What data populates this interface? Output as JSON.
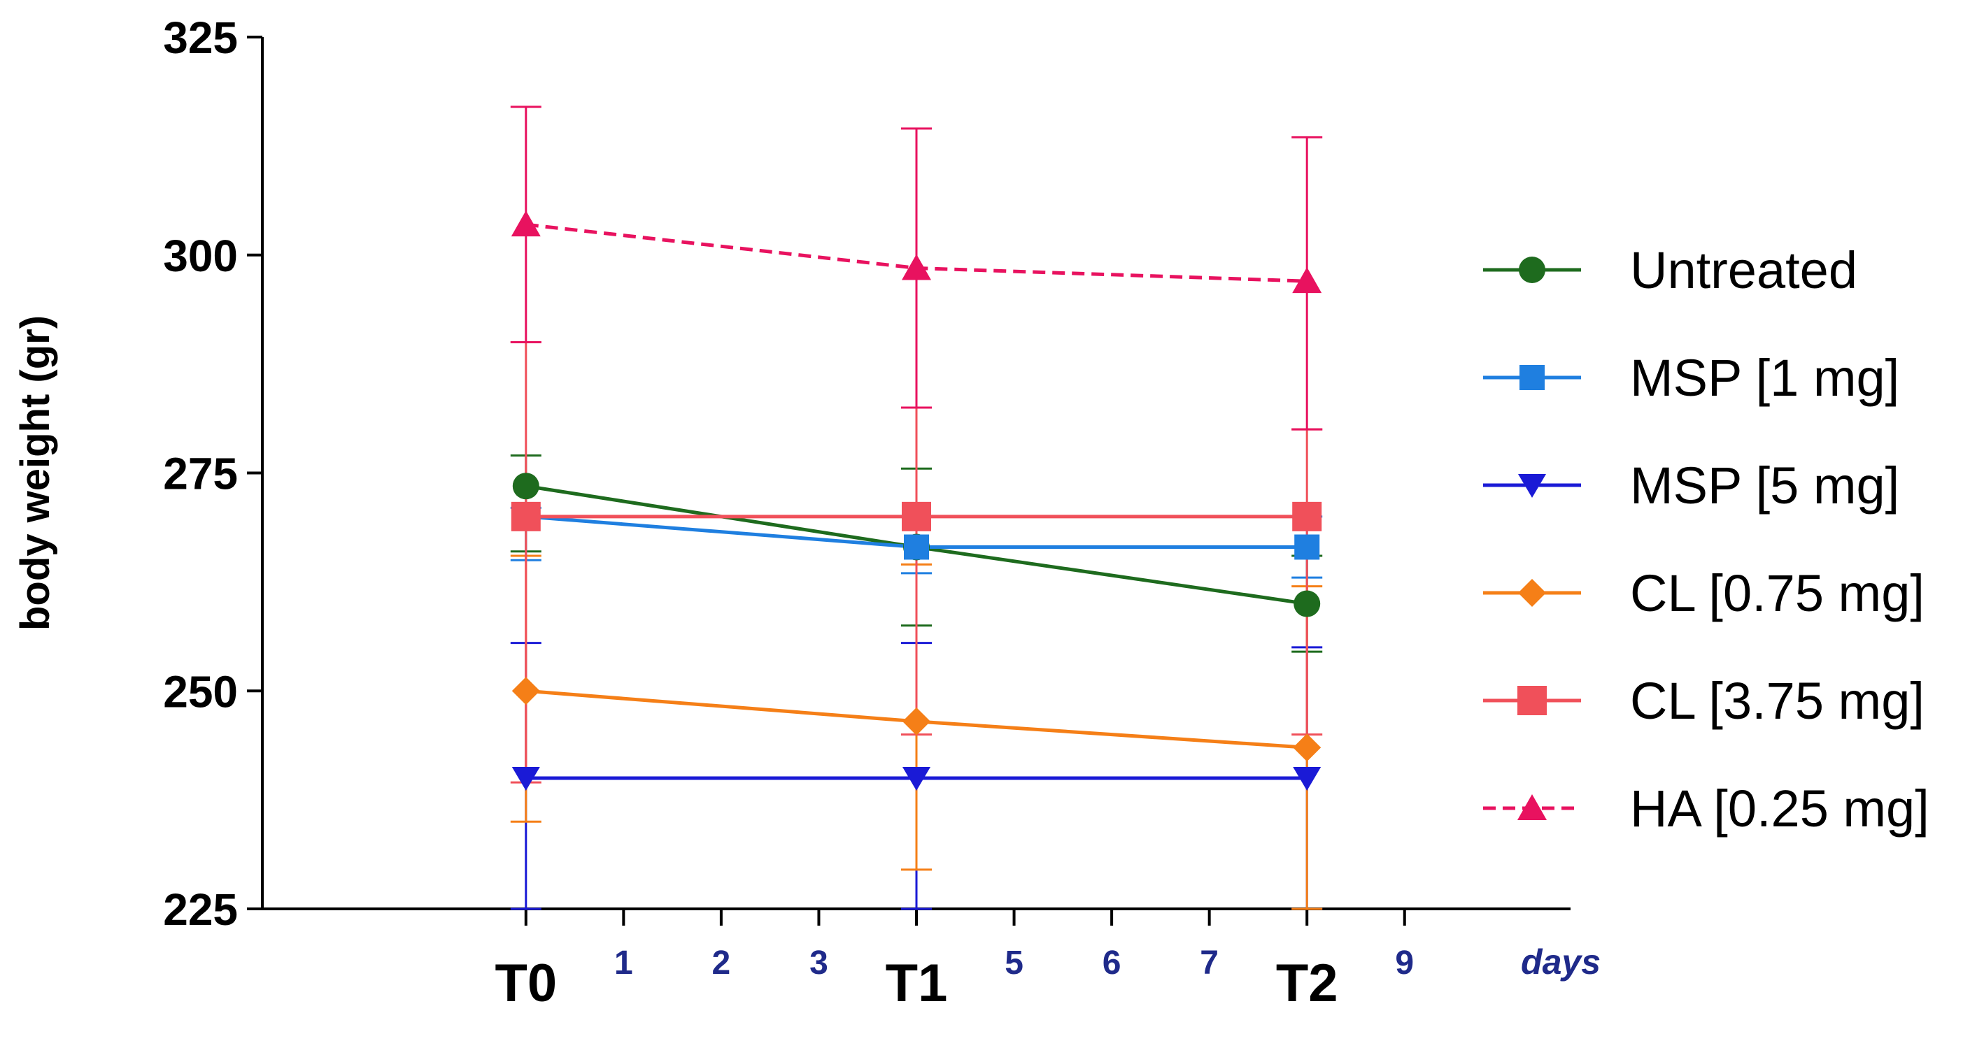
{
  "chart_data": {
    "type": "line",
    "title": "",
    "ylabel": "body weight (gr)",
    "xlabel": "",
    "x_unit_label": "days",
    "ylim": [
      225,
      325
    ],
    "xlim": [
      -2.7,
      10.7
    ],
    "yticks": [
      225,
      250,
      275,
      300,
      325
    ],
    "x_major_ticks": [
      {
        "x": 0,
        "label": "T0"
      },
      {
        "x": 4,
        "label": "T1"
      },
      {
        "x": 8,
        "label": "T2"
      }
    ],
    "x_minor_ticks": [
      {
        "x": 1,
        "label": "1"
      },
      {
        "x": 2,
        "label": "2"
      },
      {
        "x": 3,
        "label": "3"
      },
      {
        "x": 5,
        "label": "5"
      },
      {
        "x": 6,
        "label": "6"
      },
      {
        "x": 7,
        "label": "7"
      },
      {
        "x": 9,
        "label": "9"
      }
    ],
    "x": [
      0,
      4,
      8
    ],
    "series": [
      {
        "name": "Untreated",
        "color": "#1e6b1e",
        "marker": "circle",
        "dashed": false,
        "values": [
          273.5,
          266.5,
          260
        ],
        "err_low": [
          266,
          257.5,
          254.5
        ],
        "err_high": [
          277,
          275.5,
          265.5
        ]
      },
      {
        "name": "MSP [1 mg]",
        "color": "#1f7fe0",
        "marker": "square",
        "dashed": false,
        "values": [
          270,
          266.5,
          266.5
        ],
        "err_low": [
          265,
          263.5,
          263
        ],
        "err_high": [
          271,
          270,
          270
        ]
      },
      {
        "name": "MSP [5 mg]",
        "color": "#1a1ad6",
        "marker": "triangle-down",
        "dashed": false,
        "values": [
          240,
          240,
          240
        ],
        "err_low": [
          225,
          225,
          225
        ],
        "err_high": [
          255.5,
          255.5,
          255
        ]
      },
      {
        "name": "CL [0.75 mg]",
        "color": "#f57f17",
        "marker": "diamond",
        "dashed": false,
        "values": [
          250,
          246.5,
          243.5
        ],
        "err_low": [
          235,
          229.5,
          225
        ],
        "err_high": [
          265.5,
          264.5,
          262
        ]
      },
      {
        "name": "CL [3.75 mg]",
        "color": "#f0505a",
        "marker": "square-large",
        "dashed": false,
        "values": [
          270,
          270,
          270
        ],
        "err_low": [
          239.5,
          245,
          245
        ],
        "err_high": [
          290,
          282.5,
          280
        ]
      },
      {
        "name": "HA [0.25 mg]",
        "color": "#e8125f",
        "marker": "triangle-up",
        "dashed": true,
        "values": [
          303.5,
          298.5,
          297
        ],
        "err_low": [
          290,
          282.5,
          280
        ],
        "err_high": [
          317,
          314.5,
          313.5
        ]
      }
    ],
    "legend_position": "right",
    "grid": false
  }
}
